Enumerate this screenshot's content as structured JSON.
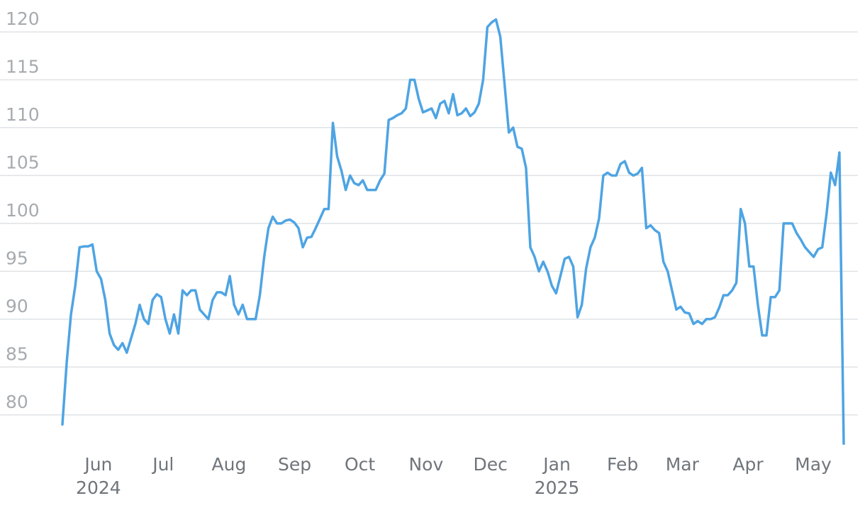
{
  "chart_data": {
    "type": "line",
    "color": "#4ea4e3",
    "grid": true,
    "values": [
      79,
      85.5,
      90.5,
      93.5,
      97.5,
      97.6,
      97.6,
      97.8,
      95,
      94.2,
      92,
      88.5,
      87.3,
      86.8,
      87.5,
      86.5,
      88,
      89.5,
      91.5,
      90,
      89.5,
      92,
      92.6,
      92.3,
      90,
      88.5,
      90.5,
      88.5,
      93,
      92.5,
      93,
      93,
      91,
      90.5,
      90,
      92,
      92.8,
      92.8,
      92.5,
      94.5,
      91.5,
      90.5,
      91.5,
      90,
      90,
      90,
      92.5,
      96.5,
      99.5,
      100.7,
      100,
      100,
      100.3,
      100.4,
      100.1,
      99.5,
      97.5,
      98.5,
      98.6,
      99.5,
      100.5,
      101.5,
      101.5,
      110.5,
      107,
      105.5,
      103.5,
      105,
      104.2,
      104,
      104.5,
      103.5,
      103.5,
      103.5,
      104.5,
      105.2,
      110.8,
      111,
      111.3,
      111.5,
      112,
      115,
      115,
      113,
      111.6,
      111.8,
      112,
      111,
      112.5,
      112.8,
      111.5,
      113.5,
      111.3,
      111.5,
      112,
      111.2,
      111.6,
      112.5,
      115,
      120.5,
      121,
      121.3,
      119.5,
      114.5,
      109.5,
      110,
      108,
      107.8,
      105.8,
      97.5,
      96.5,
      95,
      96,
      95,
      93.5,
      92.7,
      94.5,
      96.3,
      96.5,
      95.5,
      90.2,
      91.5,
      95.3,
      97.5,
      98.5,
      100.5,
      105,
      105.3,
      105,
      105,
      106.2,
      106.5,
      105.3,
      105,
      105.2,
      105.8,
      99.5,
      99.8,
      99.3,
      99,
      96,
      95,
      93,
      91,
      91.3,
      90.7,
      90.6,
      89.5,
      89.8,
      89.5,
      90,
      90,
      90.2,
      91.2,
      92.5,
      92.5,
      93,
      93.8,
      101.5,
      100,
      95.5,
      95.5,
      91.5,
      88.3,
      88.3,
      92.3,
      92.3,
      93,
      100,
      100,
      100,
      99,
      98.3,
      97.5,
      97,
      96.5,
      97.3,
      97.5,
      101,
      105.3,
      104,
      107.4,
      77
    ],
    "xlim": [
      0,
      182
    ],
    "xticks": [
      {
        "value": 8.4,
        "label": "Jun"
      },
      {
        "value": 23.5,
        "label": "Jul"
      },
      {
        "value": 38.8,
        "label": "Aug"
      },
      {
        "value": 54.1,
        "label": "Sep"
      },
      {
        "value": 69.3,
        "label": "Oct"
      },
      {
        "value": 84.7,
        "label": "Nov"
      },
      {
        "value": 99.7,
        "label": "Dec"
      },
      {
        "value": 115.2,
        "label": "Jan"
      },
      {
        "value": 130.5,
        "label": "Feb"
      },
      {
        "value": 144.4,
        "label": "Mar"
      },
      {
        "value": 159.7,
        "label": "Apr"
      },
      {
        "value": 174.9,
        "label": "May"
      }
    ],
    "xyears": [
      {
        "value": 8.4,
        "label": "2024"
      },
      {
        "value": 115.2,
        "label": "2025"
      }
    ],
    "ylim": [
      76.5,
      121.5
    ],
    "yticks": [
      80,
      85,
      90,
      95,
      100,
      105,
      110,
      115,
      120
    ]
  }
}
